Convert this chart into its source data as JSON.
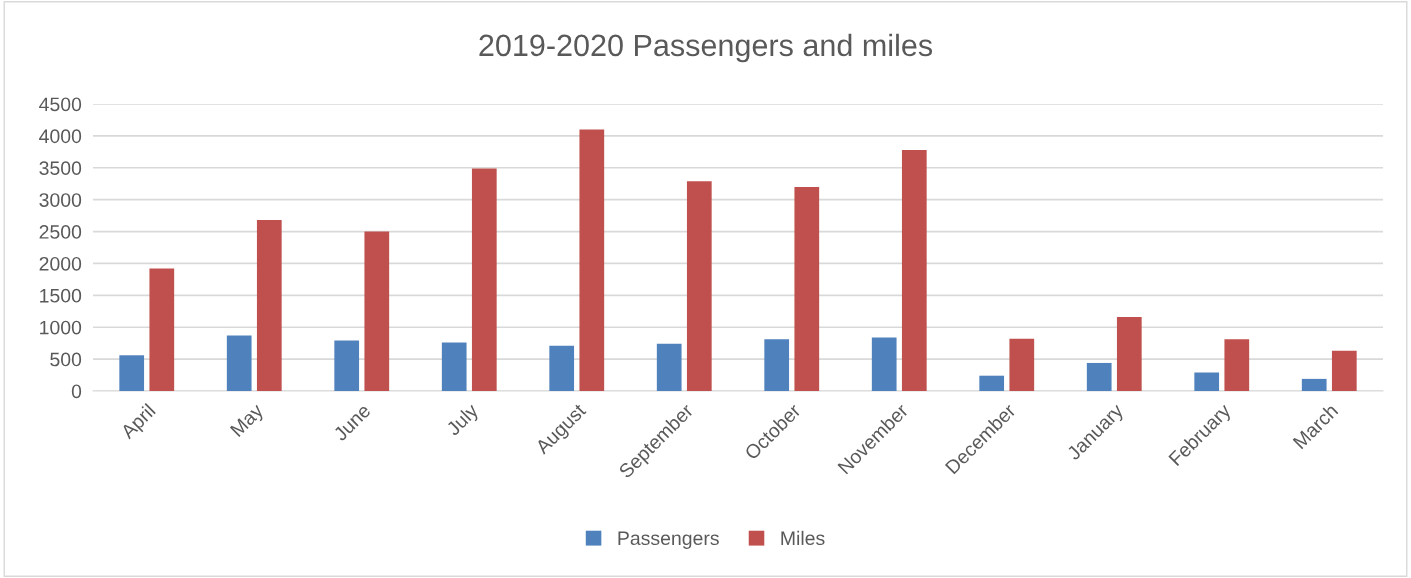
{
  "chart_data": {
    "type": "bar",
    "title": "2019-2020 Passengers and miles",
    "categories": [
      "April",
      "May",
      "June",
      "July",
      "August",
      "September",
      "October",
      "November",
      "December",
      "January",
      "February",
      "March"
    ],
    "series": [
      {
        "name": "Passengers",
        "color": "#4f81bd",
        "values": [
          560,
          870,
          790,
          760,
          710,
          740,
          810,
          840,
          240,
          440,
          290,
          190
        ]
      },
      {
        "name": "Miles",
        "color": "#c0504d",
        "values": [
          1920,
          2680,
          2500,
          3490,
          4100,
          3290,
          3200,
          3780,
          820,
          1160,
          810,
          630
        ]
      }
    ],
    "ylim": [
      0,
      4500
    ],
    "yticks": [
      0,
      500,
      1000,
      1500,
      2000,
      2500,
      3000,
      3500,
      4000,
      4500
    ],
    "grid": "y",
    "legend": "bottom"
  }
}
